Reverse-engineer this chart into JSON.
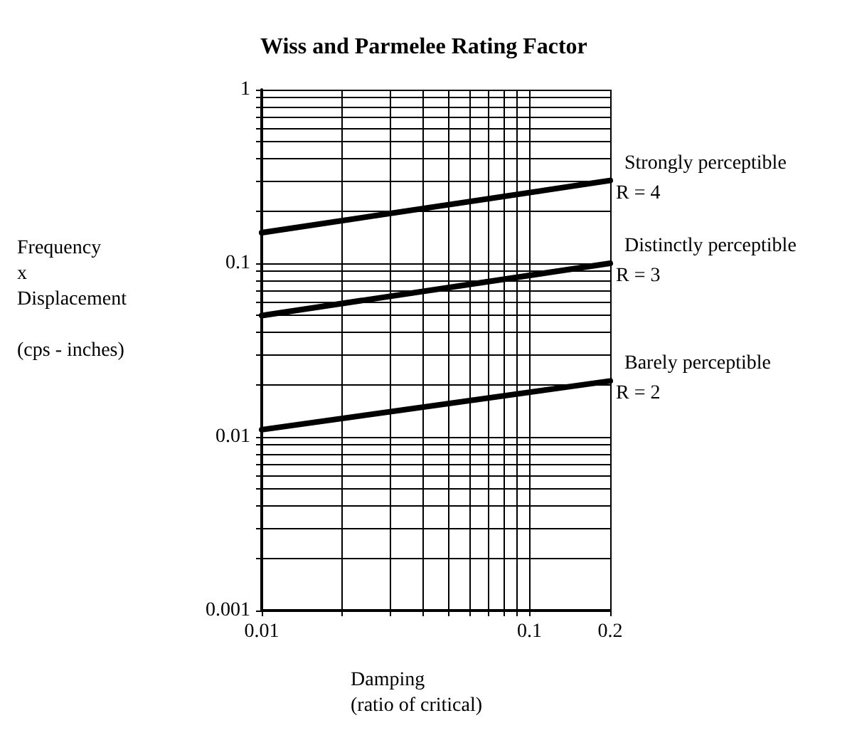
{
  "chart_data": {
    "type": "line",
    "title": "Wiss and Parmelee Rating Factor",
    "xlabel": "Damping\n(ratio of critical)",
    "ylabel": "Frequency\nx\nDisplacement\n\n(cps - inches)",
    "log": "xy",
    "grid": true,
    "legend": false,
    "marker": "none",
    "line_style": "solid",
    "xlim": [
      0.01,
      0.2
    ],
    "xticks": [
      0.01,
      0.1,
      0.2
    ],
    "ylim": [
      0.001,
      1
    ],
    "yticks": [
      0.001,
      0.01,
      0.1,
      1
    ],
    "x": [
      0.01,
      0.2
    ],
    "series": [
      {
        "name": "Strongly perceptible",
        "color": "#000000",
        "values": [
          0.15,
          0.3
        ]
      },
      {
        "name": "Distinctly perceptible",
        "color": "#000000",
        "values": [
          0.05,
          0.1
        ]
      },
      {
        "name": "Barely perceptible",
        "color": "#000000",
        "values": [
          0.011,
          0.021
        ]
      }
    ],
    "annotations": [
      "R = 4",
      "R = 3",
      "R = 2"
    ]
  }
}
